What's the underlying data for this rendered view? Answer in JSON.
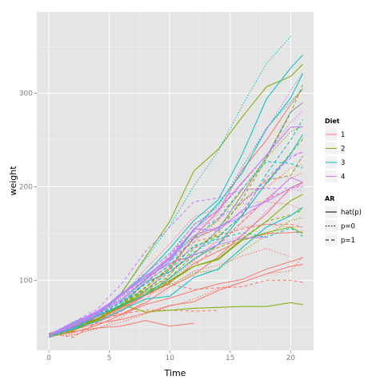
{
  "chart_data": {
    "type": "line",
    "xlabel": "Time",
    "ylabel": "weight",
    "xlim": [
      -1,
      21.9
    ],
    "ylim": [
      25,
      387
    ],
    "x_ticks": [
      0,
      5,
      10,
      15,
      20
    ],
    "y_ticks": [
      100,
      200,
      300
    ],
    "x_tick_labels": [
      "0",
      "5",
      "10",
      "15",
      "20"
    ],
    "y_tick_labels": [
      "100",
      "200",
      "300"
    ],
    "grid": true,
    "legend_placement": "right",
    "legends": [
      {
        "title": "Diet",
        "entries": [
          {
            "label": "1",
            "color": "#F8766D"
          },
          {
            "label": "2",
            "color": "#7CAE00"
          },
          {
            "label": "3",
            "color": "#00BFC4"
          },
          {
            "label": "4",
            "color": "#C77CFF"
          }
        ]
      },
      {
        "title": "AR",
        "entries": [
          {
            "label": "hat(p)",
            "linetype": "solid"
          },
          {
            "label": "p=0",
            "linetype": "dotted"
          },
          {
            "label": "p=1",
            "linetype": "dashed"
          }
        ]
      }
    ],
    "x": [
      0,
      2,
      4,
      6,
      8,
      10,
      12,
      14,
      16,
      18,
      20,
      21
    ],
    "series": [
      {
        "diet": "1",
        "ar": "hat(p)",
        "values": [
          42,
          51,
          59,
          64,
          76,
          93,
          106,
          125,
          149,
          171,
          199,
          205
        ]
      },
      {
        "diet": "1",
        "ar": "p=0",
        "values": [
          40,
          49,
          58,
          72,
          84,
          103,
          122,
          138,
          162,
          187,
          209,
          215
        ]
      },
      {
        "diet": "1",
        "ar": "p=1",
        "values": [
          43,
          39,
          55,
          67,
          84,
          99,
          115,
          138,
          163,
          187,
          198,
          202
        ]
      },
      {
        "diet": "1",
        "ar": "hat(p)",
        "values": [
          42,
          49,
          61,
          74,
          98,
          109,
          128,
          154,
          192,
          232,
          280,
          290
        ]
      },
      {
        "diet": "1",
        "ar": "p=0",
        "values": [
          41,
          42,
          48,
          60,
          79,
          106,
          141,
          164,
          197,
          199,
          220,
          223
        ]
      },
      {
        "diet": "1",
        "ar": "p=1",
        "values": [
          41,
          49,
          59,
          74,
          97,
          124,
          141,
          148,
          155,
          160,
          160,
          157
        ]
      },
      {
        "diet": "1",
        "ar": "hat(p)",
        "values": [
          41,
          49,
          57,
          71,
          89,
          112,
          146,
          174,
          218,
          250,
          288,
          305
        ]
      },
      {
        "diet": "1",
        "ar": "p=0",
        "values": [
          42,
          50,
          61,
          71,
          84,
          93,
          110,
          116,
          126,
          134,
          125,
          null
        ]
      },
      {
        "diet": "1",
        "ar": "p=1",
        "values": [
          42,
          51,
          59,
          68,
          85,
          96,
          90,
          92,
          93,
          100,
          100,
          98
        ]
      },
      {
        "diet": "1",
        "ar": "hat(p)",
        "values": [
          41,
          44,
          52,
          63,
          74,
          81,
          89,
          96,
          101,
          112,
          120,
          124
        ]
      },
      {
        "diet": "1",
        "ar": "p=0",
        "values": [
          43,
          51,
          63,
          84,
          112,
          139,
          168,
          177,
          182,
          184,
          181,
          175
        ]
      },
      {
        "diet": "1",
        "ar": "p=1",
        "values": [
          41,
          49,
          56,
          64,
          68,
          68,
          67,
          68,
          null,
          null,
          null,
          null
        ]
      },
      {
        "diet": "1",
        "ar": "hat(p)",
        "values": [
          41,
          45,
          49,
          51,
          57,
          51,
          54,
          null,
          null,
          null,
          null,
          null
        ]
      },
      {
        "diet": "1",
        "ar": "p=0",
        "values": [
          42,
          51,
          66,
          85,
          103,
          124,
          155,
          153,
          175,
          184,
          199,
          204
        ]
      },
      {
        "diet": "1",
        "ar": "p=1",
        "values": [
          42,
          46,
          58,
          73,
          92,
          114,
          145,
          156,
          184,
          207,
          212,
          233
        ]
      },
      {
        "diet": "1",
        "ar": "hat(p)",
        "values": [
          41,
          47,
          54,
          58,
          65,
          73,
          77,
          89,
          98,
          107,
          115,
          117
        ]
      },
      {
        "diet": "1",
        "ar": "p=0",
        "values": [
          42,
          41,
          49,
          55,
          64,
          72,
          80,
          91,
          98,
          107,
          110,
          125
        ]
      },
      {
        "diet": "1",
        "ar": "p=1",
        "values": [
          42,
          49,
          63,
          84,
          103,
          126,
          160,
          174,
          204,
          234,
          264,
          264
        ]
      },
      {
        "diet": "1",
        "ar": "hat(p)",
        "values": [
          42,
          48,
          58,
          70,
          84,
          97,
          118,
          131,
          143,
          150,
          151,
          152
        ]
      },
      {
        "diet": "1",
        "ar": "p=0",
        "values": [
          41,
          46,
          57,
          67,
          84,
          99,
          121,
          143,
          157,
          160,
          157,
          157
        ]
      },
      {
        "diet": "2",
        "ar": "hat(p)",
        "values": [
          40,
          50,
          62,
          86,
          125,
          163,
          217,
          240,
          275,
          307,
          318,
          331
        ]
      },
      {
        "diet": "2",
        "ar": "p=0",
        "values": [
          41,
          55,
          64,
          77,
          90,
          95,
          108,
          111,
          131,
          148,
          164,
          167
        ]
      },
      {
        "diet": "2",
        "ar": "p=1",
        "values": [
          43,
          52,
          61,
          73,
          90,
          103,
          127,
          135,
          145,
          163,
          170,
          175
        ]
      },
      {
        "diet": "2",
        "ar": "hat(p)",
        "values": [
          42,
          52,
          58,
          74,
          66,
          68,
          70,
          71,
          72,
          72,
          76,
          74
        ]
      },
      {
        "diet": "2",
        "ar": "p=0",
        "values": [
          40,
          49,
          62,
          78,
          102,
          124,
          146,
          164,
          197,
          231,
          259,
          265
        ]
      },
      {
        "diet": "2",
        "ar": "p=1",
        "values": [
          42,
          48,
          57,
          74,
          93,
          114,
          136,
          147,
          169,
          205,
          236,
          251
        ]
      },
      {
        "diet": "2",
        "ar": "hat(p)",
        "values": [
          39,
          46,
          58,
          73,
          87,
          100,
          115,
          123,
          144,
          163,
          185,
          192
        ]
      },
      {
        "diet": "2",
        "ar": "p=0",
        "values": [
          39,
          46,
          58,
          73,
          92,
          114,
          145,
          156,
          184,
          207,
          212,
          233
        ]
      },
      {
        "diet": "2",
        "ar": "p=1",
        "values": [
          39,
          48,
          59,
          74,
          87,
          106,
          134,
          150,
          187,
          230,
          279,
          309
        ]
      },
      {
        "diet": "2",
        "ar": "hat(p)",
        "values": [
          42,
          48,
          59,
          72,
          85,
          98,
          115,
          122,
          143,
          151,
          157,
          150
        ]
      },
      {
        "diet": "3",
        "ar": "hat(p)",
        "values": [
          42,
          53,
          62,
          73,
          85,
          102,
          123,
          138,
          170,
          204,
          235,
          256
        ]
      },
      {
        "diet": "3",
        "ar": "p=0",
        "values": [
          41,
          49,
          65,
          82,
          107,
          129,
          159,
          179,
          221,
          263,
          291,
          305
        ]
      },
      {
        "diet": "3",
        "ar": "p=1",
        "values": [
          39,
          50,
          63,
          77,
          96,
          111,
          137,
          144,
          151,
          146,
          156,
          147
        ]
      },
      {
        "diet": "3",
        "ar": "hat(p)",
        "values": [
          41,
          49,
          63,
          85,
          107,
          134,
          164,
          186,
          235,
          294,
          327,
          341
        ]
      },
      {
        "diet": "3",
        "ar": "p=0",
        "values": [
          41,
          53,
          64,
          87,
          123,
          158,
          201,
          238,
          287,
          332,
          361,
          null
        ]
      },
      {
        "diet": "3",
        "ar": "p=1",
        "values": [
          39,
          48,
          61,
          76,
          98,
          116,
          145,
          166,
          198,
          227,
          225,
          220
        ]
      },
      {
        "diet": "3",
        "ar": "hat(p)",
        "values": [
          41,
          48,
          56,
          68,
          80,
          83,
          103,
          112,
          135,
          157,
          169,
          178
        ]
      },
      {
        "diet": "3",
        "ar": "p=0",
        "values": [
          41,
          49,
          61,
          74,
          98,
          109,
          128,
          154,
          192,
          232,
          280,
          290
        ]
      },
      {
        "diet": "3",
        "ar": "p=1",
        "values": [
          42,
          50,
          61,
          78,
          89,
          109,
          130,
          146,
          170,
          214,
          250,
          272
        ]
      },
      {
        "diet": "3",
        "ar": "hat(p)",
        "values": [
          41,
          55,
          66,
          79,
          101,
          120,
          154,
          182,
          215,
          262,
          295,
          321
        ]
      },
      {
        "diet": "4",
        "ar": "hat(p)",
        "values": [
          42,
          51,
          66,
          85,
          103,
          124,
          155,
          153,
          175,
          184,
          199,
          204
        ]
      },
      {
        "diet": "4",
        "ar": "p=0",
        "values": [
          42,
          49,
          63,
          84,
          103,
          126,
          160,
          174,
          204,
          234,
          269,
          281
        ]
      },
      {
        "diet": "4",
        "ar": "p=1",
        "values": [
          42,
          55,
          69,
          96,
          131,
          157,
          184,
          188,
          197,
          198,
          199,
          200
        ]
      },
      {
        "diet": "4",
        "ar": "hat(p)",
        "values": [
          42,
          51,
          65,
          86,
          103,
          118,
          127,
          138,
          145,
          146,
          null,
          null
        ]
      },
      {
        "diet": "4",
        "ar": "p=0",
        "values": [
          41,
          50,
          61,
          78,
          98,
          117,
          135,
          141,
          147,
          174,
          197,
          196
        ]
      },
      {
        "diet": "4",
        "ar": "p=1",
        "values": [
          40,
          52,
          62,
          82,
          101,
          120,
          144,
          156,
          173,
          210,
          231,
          238
        ]
      },
      {
        "diet": "4",
        "ar": "hat(p)",
        "values": [
          41,
          53,
          66,
          79,
          100,
          123,
          148,
          157,
          168,
          185,
          210,
          205
        ]
      },
      {
        "diet": "4",
        "ar": "p=0",
        "values": [
          39,
          50,
          62,
          80,
          104,
          125,
          154,
          170,
          222,
          261,
          303,
          322
        ]
      },
      {
        "diet": "4",
        "ar": "p=1",
        "values": [
          40,
          53,
          64,
          85,
          108,
          128,
          152,
          166,
          184,
          203,
          233,
          237
        ]
      },
      {
        "diet": "4",
        "ar": "hat(p)",
        "values": [
          41,
          54,
          67,
          84,
          105,
          122,
          155,
          175,
          205,
          234,
          264,
          264
        ]
      }
    ]
  }
}
